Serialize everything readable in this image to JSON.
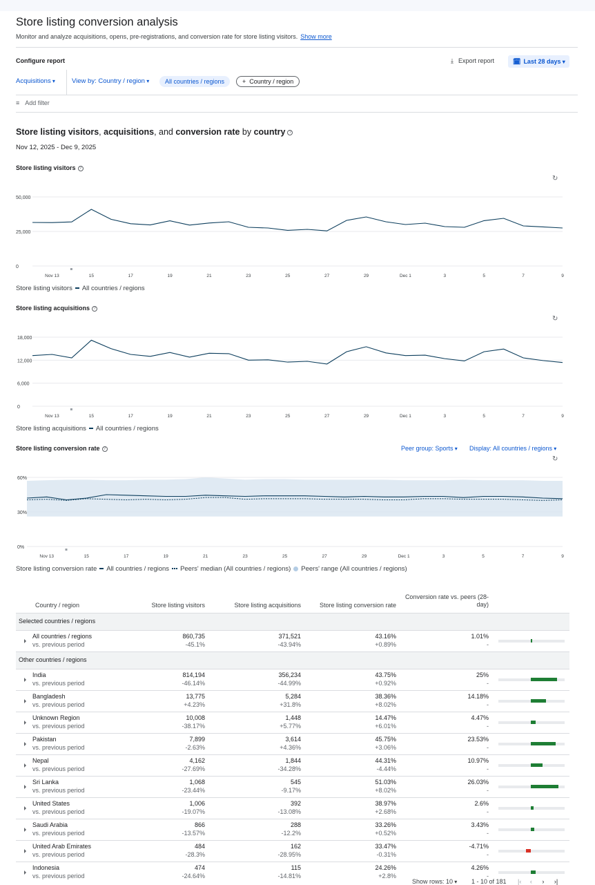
{
  "page": {
    "title": "Store listing conversion analysis",
    "subtitle": "Monitor and analyze acquisitions, opens, pre-registrations, and conversion rate for store listing visitors.",
    "show_more": "Show more"
  },
  "configure": {
    "label": "Configure report",
    "export": "Export report",
    "date_range": "Last 28 days",
    "metric_select": "Acquisitions",
    "view_by": "View by: Country / region",
    "chip_selected": "All countries / regions",
    "chip_add": "Country / region",
    "add_filter": "Add filter"
  },
  "section": {
    "title_parts": [
      "Store listing visitors",
      ", ",
      "acquisitions",
      ", and ",
      "conversion rate",
      " by ",
      "country"
    ],
    "date_range": "Nov 12, 2025 - Dec 9, 2025"
  },
  "x_ticks": [
    "Nov 13",
    "15",
    "17",
    "19",
    "21",
    "23",
    "25",
    "27",
    "29",
    "Dec 1",
    "3",
    "5",
    "7",
    "9"
  ],
  "chart_data": [
    {
      "type": "line",
      "title": "Store listing visitors",
      "x": [
        "Nov 12",
        "Nov 13",
        "Nov 14",
        "Nov 15",
        "Nov 16",
        "Nov 17",
        "Nov 18",
        "Nov 19",
        "Nov 20",
        "Nov 21",
        "Nov 22",
        "Nov 23",
        "Nov 24",
        "Nov 25",
        "Nov 26",
        "Nov 27",
        "Nov 28",
        "Nov 29",
        "Nov 30",
        "Dec 1",
        "Dec 2",
        "Dec 3",
        "Dec 4",
        "Dec 5",
        "Dec 6",
        "Dec 7",
        "Dec 8",
        "Dec 9"
      ],
      "y_ticks": [
        "50,000",
        "25,000",
        "0"
      ],
      "ylim": [
        0,
        50000
      ],
      "series": [
        {
          "name": "All countries / regions",
          "values": [
            31500,
            31400,
            31900,
            41000,
            33800,
            30600,
            29700,
            32700,
            29600,
            31100,
            32000,
            28000,
            27500,
            25800,
            26500,
            25400,
            33000,
            35500,
            32000,
            30000,
            31000,
            28500,
            28000,
            32800,
            34500,
            29000,
            28300,
            27500
          ]
        }
      ],
      "legend_prefix": "Store listing visitors"
    },
    {
      "type": "line",
      "title": "Store listing acquisitions",
      "x": [
        "Nov 12",
        "Nov 13",
        "Nov 14",
        "Nov 15",
        "Nov 16",
        "Nov 17",
        "Nov 18",
        "Nov 19",
        "Nov 20",
        "Nov 21",
        "Nov 22",
        "Nov 23",
        "Nov 24",
        "Nov 25",
        "Nov 26",
        "Nov 27",
        "Nov 28",
        "Nov 29",
        "Nov 30",
        "Dec 1",
        "Dec 2",
        "Dec 3",
        "Dec 4",
        "Dec 5",
        "Dec 6",
        "Dec 7",
        "Dec 8",
        "Dec 9"
      ],
      "y_ticks": [
        "18,000",
        "12,000",
        "6,000",
        "0"
      ],
      "ylim": [
        0,
        18000
      ],
      "series": [
        {
          "name": "All countries / regions",
          "values": [
            13200,
            13500,
            12600,
            17200,
            15000,
            13500,
            13000,
            14000,
            12800,
            13800,
            13700,
            12000,
            12100,
            11500,
            11700,
            11000,
            14200,
            15500,
            13900,
            13200,
            13300,
            12400,
            11800,
            14200,
            14900,
            12600,
            11900,
            11400
          ]
        }
      ],
      "legend_prefix": "Store listing acquisitions"
    },
    {
      "type": "line",
      "title": "Store listing conversion rate",
      "x": [
        "Nov 12",
        "Nov 13",
        "Nov 14",
        "Nov 15",
        "Nov 16",
        "Nov 17",
        "Nov 18",
        "Nov 19",
        "Nov 20",
        "Nov 21",
        "Nov 22",
        "Nov 23",
        "Nov 24",
        "Nov 25",
        "Nov 26",
        "Nov 27",
        "Nov 28",
        "Nov 29",
        "Nov 30",
        "Dec 1",
        "Dec 2",
        "Dec 3",
        "Dec 4",
        "Dec 5",
        "Dec 6",
        "Dec 7",
        "Dec 8",
        "Dec 9"
      ],
      "y_ticks": [
        "60%",
        "30%",
        "0%"
      ],
      "ylim": [
        0,
        60
      ],
      "series": [
        {
          "name": "All countries / regions",
          "values": [
            42,
            43,
            40.5,
            42,
            45,
            44.5,
            44,
            43.5,
            43.5,
            44.5,
            44,
            43.5,
            44,
            44,
            44,
            43.5,
            43,
            43.5,
            43,
            43,
            43.5,
            43.5,
            42.5,
            43.5,
            43.5,
            43,
            42,
            41.5
          ]
        },
        {
          "name": "Peers' median (All countries / regions)",
          "values": [
            40.5,
            41,
            40,
            41.5,
            41,
            40.5,
            41,
            40.5,
            41,
            42.5,
            42.5,
            41,
            41.5,
            41.5,
            41.5,
            41,
            41,
            41,
            40.5,
            40.5,
            41.5,
            41.5,
            41,
            41,
            41,
            40.5,
            40,
            40.5
          ]
        }
      ],
      "range": {
        "name": "Peers' range (All countries / regions)",
        "low": [
          26,
          26,
          26,
          26,
          26,
          26,
          26,
          26,
          26,
          26,
          26,
          26,
          26,
          26,
          26,
          26,
          26,
          26,
          26,
          26,
          26,
          26,
          26,
          26,
          26,
          26,
          26,
          26
        ],
        "high": [
          57,
          57.5,
          58,
          58,
          57.5,
          57.5,
          58,
          58,
          58.5,
          60,
          59,
          58,
          58.5,
          58.5,
          58,
          58,
          58,
          58,
          58,
          57.5,
          57.5,
          57.5,
          58,
          57.5,
          57.5,
          57.5,
          57,
          57
        ]
      },
      "legend_prefix": "Store listing conversion rate",
      "peer_group": "Peer group: Sports",
      "display": "Display: All countries / regions"
    },
    {
      "type": "table",
      "title": "",
      "columns": [
        "Country / region",
        "Store listing visitors",
        "Store listing acquisitions",
        "Store listing conversion rate",
        "Conversion rate vs. peers (28-day)"
      ],
      "groups": [
        {
          "label": "Selected countries / regions",
          "rows": [
            {
              "name": "All countries / regions",
              "sub": "vs. previous period",
              "visitors": "860,735",
              "visitors_chg": "-45.1%",
              "acq": "371,521",
              "acq_chg": "-43.94%",
              "conv": "43.16%",
              "conv_chg": "+0.89%",
              "vs_peers": "1.01%",
              "vs_peers_sub": "-",
              "vs_value": 1.01
            }
          ]
        },
        {
          "label": "Other countries / regions",
          "rows": [
            {
              "name": "India",
              "sub": "vs. previous period",
              "visitors": "814,194",
              "visitors_chg": "-46.14%",
              "acq": "356,234",
              "acq_chg": "-44.99%",
              "conv": "43.75%",
              "conv_chg": "+0.92%",
              "vs_peers": "25%",
              "vs_peers_sub": "-",
              "vs_value": 25
            },
            {
              "name": "Bangladesh",
              "sub": "vs. previous period",
              "visitors": "13,775",
              "visitors_chg": "+4.23%",
              "acq": "5,284",
              "acq_chg": "+31.8%",
              "conv": "38.36%",
              "conv_chg": "+8.02%",
              "vs_peers": "14.18%",
              "vs_peers_sub": "-",
              "vs_value": 14.18
            },
            {
              "name": "Unknown Region",
              "sub": "vs. previous period",
              "visitors": "10,008",
              "visitors_chg": "-38.17%",
              "acq": "1,448",
              "acq_chg": "+5.77%",
              "conv": "14.47%",
              "conv_chg": "+6.01%",
              "vs_peers": "4.47%",
              "vs_peers_sub": "-",
              "vs_value": 4.47
            },
            {
              "name": "Pakistan",
              "sub": "vs. previous period",
              "visitors": "7,899",
              "visitors_chg": "-2.63%",
              "acq": "3,614",
              "acq_chg": "+4.36%",
              "conv": "45.75%",
              "conv_chg": "+3.06%",
              "vs_peers": "23.53%",
              "vs_peers_sub": "-",
              "vs_value": 23.53
            },
            {
              "name": "Nepal",
              "sub": "vs. previous period",
              "visitors": "4,162",
              "visitors_chg": "-27.69%",
              "acq": "1,844",
              "acq_chg": "-34.28%",
              "conv": "44.31%",
              "conv_chg": "-4.44%",
              "vs_peers": "10.97%",
              "vs_peers_sub": "-",
              "vs_value": 10.97
            },
            {
              "name": "Sri Lanka",
              "sub": "vs. previous period",
              "visitors": "1,068",
              "visitors_chg": "-23.44%",
              "acq": "545",
              "acq_chg": "-9.17%",
              "conv": "51.03%",
              "conv_chg": "+8.02%",
              "vs_peers": "26.03%",
              "vs_peers_sub": "-",
              "vs_value": 26.03
            },
            {
              "name": "United States",
              "sub": "vs. previous period",
              "visitors": "1,006",
              "visitors_chg": "-19.07%",
              "acq": "392",
              "acq_chg": "-13.08%",
              "conv": "38.97%",
              "conv_chg": "+2.68%",
              "vs_peers": "2.6%",
              "vs_peers_sub": "-",
              "vs_value": 2.6
            },
            {
              "name": "Saudi Arabia",
              "sub": "vs. previous period",
              "visitors": "866",
              "visitors_chg": "-13.57%",
              "acq": "288",
              "acq_chg": "-12.2%",
              "conv": "33.26%",
              "conv_chg": "+0.52%",
              "vs_peers": "3.43%",
              "vs_peers_sub": "-",
              "vs_value": 3.43
            },
            {
              "name": "United Arab Emirates",
              "sub": "vs. previous period",
              "visitors": "484",
              "visitors_chg": "-28.3%",
              "acq": "162",
              "acq_chg": "-28.95%",
              "conv": "33.47%",
              "conv_chg": "-0.31%",
              "vs_peers": "-4.71%",
              "vs_peers_sub": "-",
              "vs_value": -4.71
            },
            {
              "name": "Indonesia",
              "sub": "vs. previous period",
              "visitors": "474",
              "visitors_chg": "-24.64%",
              "acq": "115",
              "acq_chg": "-14.81%",
              "conv": "24.26%",
              "conv_chg": "+2.8%",
              "vs_peers": "4.26%",
              "vs_peers_sub": "-",
              "vs_value": 4.26
            }
          ]
        }
      ]
    }
  ],
  "pagination": {
    "show_rows_label": "Show rows:",
    "rows": "10",
    "range": "1 - 10 of 181"
  },
  "colors": {
    "accent": "#0b57d0",
    "line": "#0b3d5c",
    "range_fill": "#dbe6f1",
    "positive": "#1e7e34",
    "negative": "#d93025"
  }
}
